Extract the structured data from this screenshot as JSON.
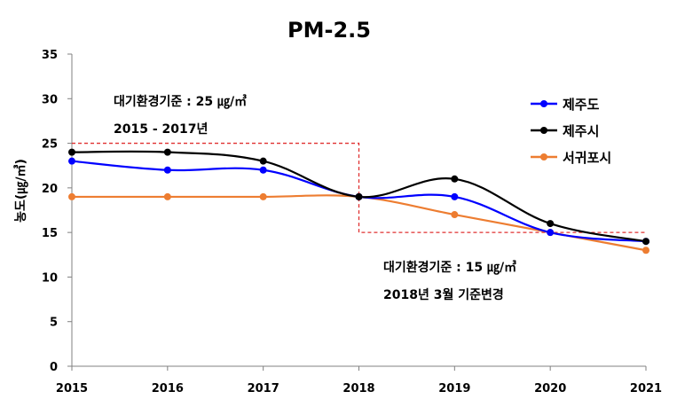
{
  "chart_data": {
    "type": "line",
    "title": "PM-2.5",
    "xlabel": "",
    "ylabel": "농도(㎍/㎥)",
    "x": [
      2015,
      2016,
      2017,
      2018,
      2019,
      2020,
      2021
    ],
    "x_tick_labels": [
      "2015",
      "2016",
      "2017",
      "2018",
      "2019",
      "2020",
      "2021"
    ],
    "ylim": [
      0,
      35
    ],
    "y_ticks": [
      0,
      5,
      10,
      15,
      20,
      25,
      30,
      35
    ],
    "y_tick_labels": [
      "0",
      "5",
      "10",
      "15",
      "20",
      "25",
      "30",
      "35"
    ],
    "grid": false,
    "legend_position": "top-right",
    "series": [
      {
        "name": "제주도",
        "color": "#0000ff",
        "values": [
          23,
          22,
          22,
          19,
          19,
          15,
          14
        ]
      },
      {
        "name": "제주시",
        "color": "#000000",
        "values": [
          24,
          24,
          23,
          19,
          21,
          16,
          14
        ]
      },
      {
        "name": "서귀포시",
        "color": "#ed7d31",
        "values": [
          19,
          19,
          19,
          19,
          17,
          15,
          13
        ]
      }
    ],
    "standard_line": {
      "color": "#e03030",
      "segments": [
        {
          "x_from": 2015,
          "x_to": 2018,
          "value": 25
        },
        {
          "x_from": 2018,
          "x_to": 2021,
          "value": 15
        }
      ]
    },
    "annotations": [
      {
        "line1": "대기환경기준 : 25 ㎍/㎥",
        "line2": "2015  - 2017년"
      },
      {
        "line1": "대기환경기준 : 15 ㎍/㎥",
        "line2": "2018년 3월 기준변경"
      }
    ]
  }
}
